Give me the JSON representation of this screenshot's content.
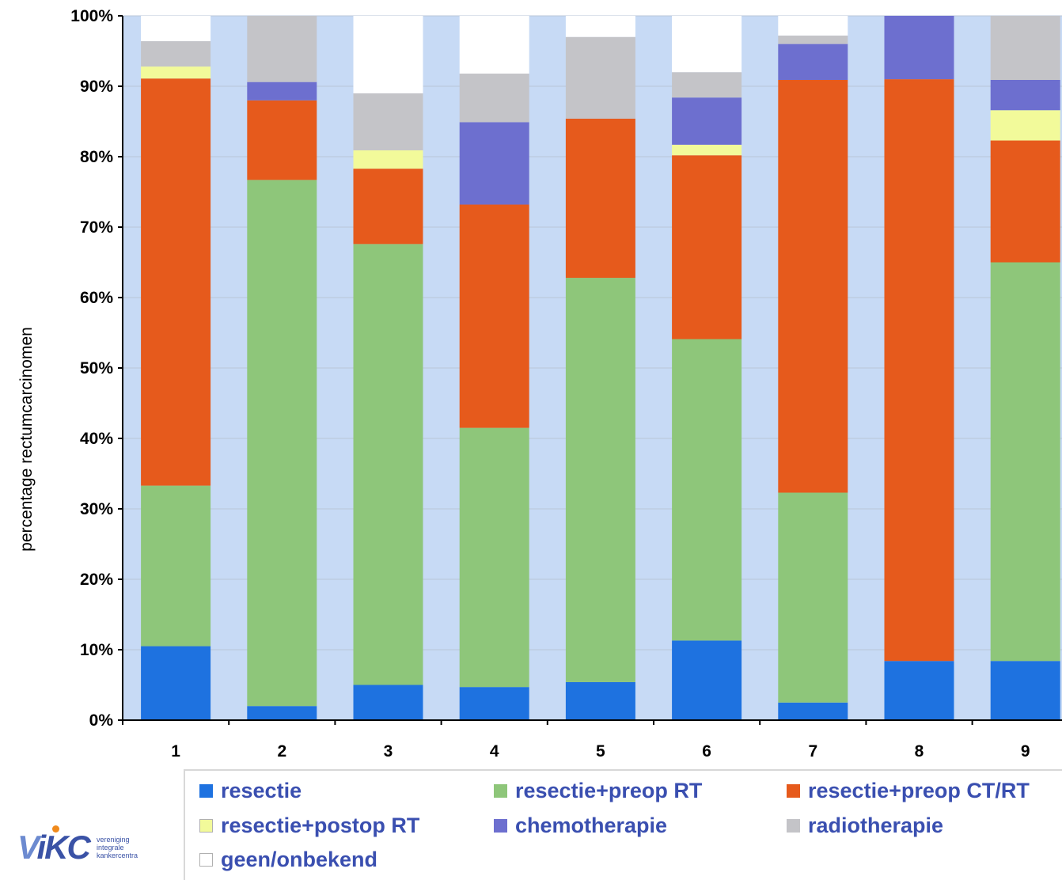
{
  "chart_data": {
    "type": "bar",
    "stacked": true,
    "ylabel": "percentage rectumcarcinomen",
    "ylim": [
      0,
      100
    ],
    "y_ticks": [
      "0%",
      "10%",
      "20%",
      "30%",
      "40%",
      "50%",
      "60%",
      "70%",
      "80%",
      "90%",
      "100%"
    ],
    "categories": [
      "1",
      "2",
      "3",
      "4",
      "5",
      "6",
      "7",
      "8",
      "9"
    ],
    "series": [
      {
        "name": "resectie",
        "color": "#1e72e0",
        "values": [
          10.5,
          2,
          5,
          4.7,
          5.4,
          11.3,
          2.5,
          8.4,
          8.4
        ]
      },
      {
        "name": "resectie+preop RT",
        "color": "#8ec67a",
        "values": [
          22.8,
          74.7,
          62.6,
          36.8,
          57.4,
          42.8,
          29.8,
          0,
          56.6
        ]
      },
      {
        "name": "resectie+preop CT/RT",
        "color": "#e65a1c",
        "values": [
          57.8,
          11.3,
          10.7,
          31.7,
          22.6,
          26.1,
          58.6,
          82.6,
          17.3
        ]
      },
      {
        "name": "resectie+postop RT",
        "color": "#f2fa9a",
        "values": [
          1.7,
          0,
          2.6,
          0,
          0,
          1.5,
          0,
          0,
          4.3
        ]
      },
      {
        "name": "chemotherapie",
        "color": "#6d6fcf",
        "values": [
          0,
          2.6,
          0,
          11.7,
          0,
          6.7,
          5.1,
          9,
          4.3
        ]
      },
      {
        "name": "radiotherapie",
        "color": "#c4c4c8",
        "values": [
          3.6,
          9.4,
          8.1,
          6.9,
          11.6,
          3.6,
          1.2,
          0,
          9.1
        ]
      },
      {
        "name": "geen/onbekend",
        "color": "#ffffff",
        "values": [
          3.6,
          0,
          11,
          8.2,
          3,
          8,
          2.8,
          0,
          0
        ]
      }
    ],
    "grid": true,
    "legend_position": "bottom"
  },
  "colors": {
    "plot_background": "#c7daf5",
    "axis": "#000000"
  },
  "logo": {
    "mark": "VIKC",
    "text_lines": [
      "vereniging",
      "integrale",
      "kankercentra"
    ]
  }
}
